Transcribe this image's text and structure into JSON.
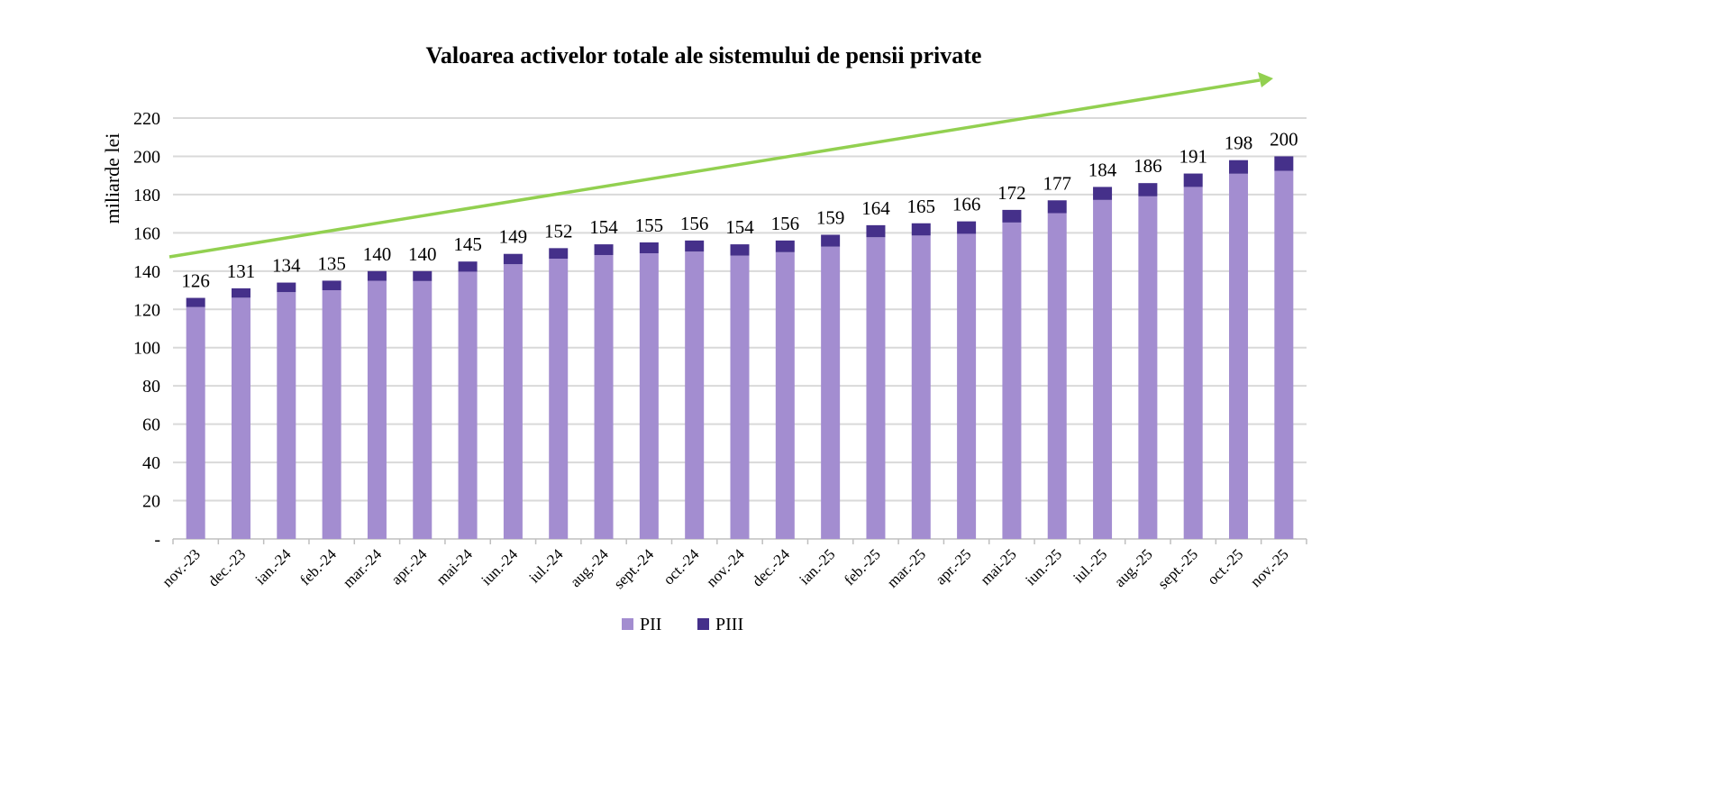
{
  "chart_data": {
    "type": "bar",
    "stacked": true,
    "title": "Valoarea activelor totale ale sistemului de pensii private",
    "xlabel": "",
    "ylabel": "miliarde lei",
    "ylim": [
      0,
      220
    ],
    "yticks": [
      "-",
      "20",
      "40",
      "60",
      "80",
      "100",
      "120",
      "140",
      "160",
      "180",
      "200",
      "220"
    ],
    "grid": true,
    "legend_position": "bottom",
    "categories": [
      "nov.-23",
      "dec.-23",
      "ian.-24",
      "feb.-24",
      "mar.-24",
      "apr.-24",
      "mai-24",
      "iun.-24",
      "iul.-24",
      "aug.-24",
      "sept.-24",
      "oct.-24",
      "nov.-24",
      "dec.-24",
      "ian.-25",
      "feb.-25",
      "mar.-25",
      "apr.-25",
      "mai-25",
      "iun.-25",
      "iul.-25",
      "aug.-25",
      "sept.-25",
      "oct.-25",
      "nov.-25"
    ],
    "series": [
      {
        "name": "PII",
        "color": "#a38dd0",
        "values": [
          121.2,
          126.1,
          129.0,
          130.0,
          134.9,
          134.8,
          139.7,
          143.6,
          146.5,
          148.4,
          149.3,
          150.2,
          148.1,
          149.9,
          152.8,
          157.7,
          158.6,
          159.5,
          165.4,
          170.3,
          177.2,
          179.1,
          184.0,
          190.9,
          192.4
        ]
      },
      {
        "name": "PIII",
        "color": "#45308a",
        "values": [
          4.8,
          4.9,
          5.0,
          5.0,
          5.1,
          5.2,
          5.3,
          5.4,
          5.5,
          5.6,
          5.7,
          5.8,
          5.9,
          6.1,
          6.2,
          6.3,
          6.4,
          6.5,
          6.6,
          6.7,
          6.8,
          6.9,
          7.0,
          7.1,
          7.6
        ]
      }
    ],
    "data_labels": [
      "126",
      "131",
      "134",
      "135",
      "140",
      "140",
      "145",
      "149",
      "152",
      "154",
      "155",
      "156",
      "154",
      "156",
      "159",
      "164",
      "165",
      "166",
      "172",
      "177",
      "184",
      "186",
      "191",
      "198",
      "200"
    ],
    "trend_arrow_color": "#92d050"
  }
}
